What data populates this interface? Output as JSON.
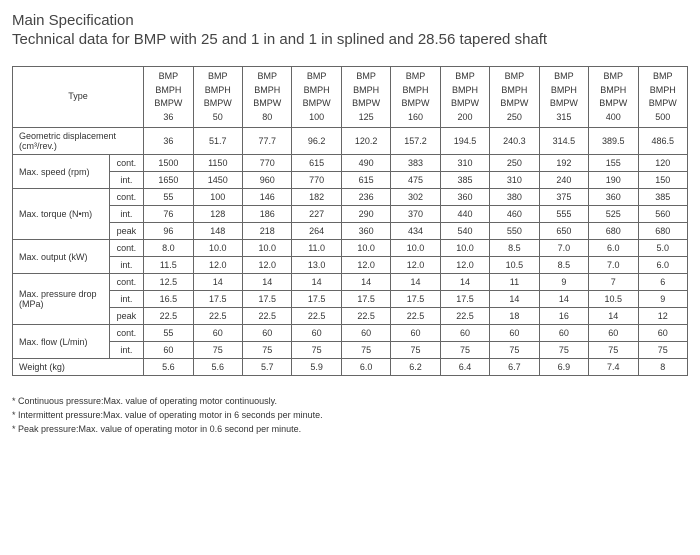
{
  "heading1": "Main Specification",
  "heading2": "Technical data for BMP with 25 and 1 in and 1 in splined and 28.56 tapered shaft",
  "typeLabel": "Type",
  "typeLines": [
    "BMP",
    "BMPH",
    "BMPW"
  ],
  "sizes": [
    "36",
    "50",
    "80",
    "100",
    "125",
    "160",
    "200",
    "250",
    "315",
    "400",
    "500"
  ],
  "rows": [
    {
      "label": "Geometric displacement (cm³/rev.)",
      "span": 2,
      "sub": null,
      "vals": [
        "36",
        "51.7",
        "77.7",
        "96.2",
        "120.2",
        "157.2",
        "194.5",
        "240.3",
        "314.5",
        "389.5",
        "486.5"
      ]
    },
    {
      "label": "Max. speed    (rpm)",
      "group": 2,
      "sub": "cont.",
      "vals": [
        "1500",
        "1150",
        "770",
        "615",
        "490",
        "383",
        "310",
        "250",
        "192",
        "155",
        "120"
      ]
    },
    {
      "sub": "int.",
      "vals": [
        "1650",
        "1450",
        "960",
        "770",
        "615",
        "475",
        "385",
        "310",
        "240",
        "190",
        "150"
      ]
    },
    {
      "label": "Max. torque   (N•m)",
      "group": 3,
      "sub": "cont.",
      "vals": [
        "55",
        "100",
        "146",
        "182",
        "236",
        "302",
        "360",
        "380",
        "375",
        "360",
        "385"
      ]
    },
    {
      "sub": "int.",
      "vals": [
        "76",
        "128",
        "186",
        "227",
        "290",
        "370",
        "440",
        "460",
        "555",
        "525",
        "560"
      ]
    },
    {
      "sub": "peak",
      "vals": [
        "96",
        "148",
        "218",
        "264",
        "360",
        "434",
        "540",
        "550",
        "650",
        "680",
        "680"
      ]
    },
    {
      "label": "Max. output   (kW)",
      "group": 2,
      "sub": "cont.",
      "vals": [
        "8.0",
        "10.0",
        "10.0",
        "11.0",
        "10.0",
        "10.0",
        "10.0",
        "8.5",
        "7.0",
        "6.0",
        "5.0"
      ]
    },
    {
      "sub": "int.",
      "vals": [
        "11.5",
        "12.0",
        "12.0",
        "13.0",
        "12.0",
        "12.0",
        "12.0",
        "10.5",
        "8.5",
        "7.0",
        "6.0"
      ]
    },
    {
      "label": "Max. pressure drop       (MPa)",
      "group": 3,
      "sub": "cont.",
      "vals": [
        "12.5",
        "14",
        "14",
        "14",
        "14",
        "14",
        "14",
        "11",
        "9",
        "7",
        "6"
      ]
    },
    {
      "sub": "int.",
      "vals": [
        "16.5",
        "17.5",
        "17.5",
        "17.5",
        "17.5",
        "17.5",
        "17.5",
        "14",
        "14",
        "10.5",
        "9"
      ]
    },
    {
      "sub": "peak",
      "vals": [
        "22.5",
        "22.5",
        "22.5",
        "22.5",
        "22.5",
        "22.5",
        "22.5",
        "18",
        "16",
        "14",
        "12"
      ]
    },
    {
      "label": "Max. flow     (L/min)",
      "group": 2,
      "sub": "cont.",
      "vals": [
        "55",
        "60",
        "60",
        "60",
        "60",
        "60",
        "60",
        "60",
        "60",
        "60",
        "60"
      ]
    },
    {
      "sub": "int.",
      "vals": [
        "60",
        "75",
        "75",
        "75",
        "75",
        "75",
        "75",
        "75",
        "75",
        "75",
        "75"
      ]
    },
    {
      "label": "Weight   (kg)",
      "span": 2,
      "sub": null,
      "vals": [
        "5.6",
        "5.6",
        "5.7",
        "5.9",
        "6.0",
        "6.2",
        "6.4",
        "6.7",
        "6.9",
        "7.4",
        "8"
      ]
    }
  ],
  "footnotes": [
    "* Continuous pressure:Max. value of operating motor continuously.",
    "* Intermittent pressure:Max. value of operating motor in 6 seconds per minute.",
    "* Peak pressure:Max. value of operating motor in 0.6 second per minute."
  ]
}
